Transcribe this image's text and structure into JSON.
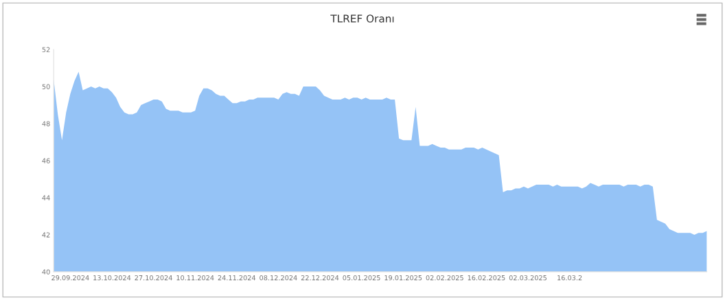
{
  "chart_data": {
    "type": "area",
    "title": "TLREF Oranı",
    "categories": [
      null,
      null,
      null,
      null,
      "29.09.2024",
      null,
      null,
      null,
      null,
      null,
      null,
      null,
      null,
      null,
      "13.10.2024",
      null,
      null,
      null,
      null,
      null,
      null,
      null,
      null,
      null,
      "27.10.2024",
      null,
      null,
      null,
      null,
      null,
      null,
      null,
      null,
      null,
      "10.11.2024",
      null,
      null,
      null,
      null,
      null,
      null,
      null,
      null,
      null,
      "24.11.2024",
      null,
      null,
      null,
      null,
      null,
      null,
      null,
      null,
      null,
      "08.12.2024",
      null,
      null,
      null,
      null,
      null,
      null,
      null,
      null,
      null,
      "22.12.2024",
      null,
      null,
      null,
      null,
      null,
      null,
      null,
      null,
      null,
      "05.01.2025",
      null,
      null,
      null,
      null,
      null,
      null,
      null,
      null,
      null,
      "19.01.2025",
      null,
      null,
      null,
      null,
      null,
      null,
      null,
      null,
      null,
      "02.02.2025",
      null,
      null,
      null,
      null,
      null,
      null,
      null,
      null,
      null,
      "16.02.2025",
      null,
      null,
      null,
      null,
      null,
      null,
      null,
      null,
      null,
      "02.03.2025",
      null,
      null,
      null,
      null,
      null,
      null,
      null,
      null,
      null,
      "16.03.2",
      null,
      null,
      null,
      null,
      null,
      null,
      null,
      null,
      null,
      null,
      null,
      null,
      null,
      null,
      null,
      null,
      null,
      null,
      null,
      null,
      null,
      null,
      null,
      null,
      null,
      null,
      null,
      null,
      null,
      null,
      null,
      null,
      null
    ],
    "series": [
      {
        "color": "#8fc0f5",
        "values": [
          50.4,
          48.5,
          47.1,
          48.6,
          49.6,
          50.3,
          50.8,
          49.8,
          49.9,
          50.0,
          49.9,
          50.0,
          49.9,
          49.9,
          49.7,
          49.4,
          48.9,
          48.6,
          48.5,
          48.5,
          48.6,
          49.0,
          49.1,
          49.2,
          49.3,
          49.3,
          49.2,
          48.8,
          48.7,
          48.7,
          48.7,
          48.6,
          48.6,
          48.6,
          48.7,
          49.5,
          49.9,
          49.9,
          49.8,
          49.6,
          49.5,
          49.5,
          49.3,
          49.1,
          49.1,
          49.2,
          49.2,
          49.3,
          49.3,
          49.4,
          49.4,
          49.4,
          49.4,
          49.4,
          49.3,
          49.6,
          49.7,
          49.6,
          49.6,
          49.5,
          50.0,
          50.0,
          50.0,
          50.0,
          49.8,
          49.5,
          49.4,
          49.3,
          49.3,
          49.3,
          49.4,
          49.3,
          49.4,
          49.4,
          49.3,
          49.4,
          49.3,
          49.3,
          49.3,
          49.3,
          49.4,
          49.3,
          49.3,
          47.2,
          47.1,
          47.1,
          47.1,
          48.9,
          46.8,
          46.8,
          46.8,
          46.9,
          46.8,
          46.7,
          46.7,
          46.6,
          46.6,
          46.6,
          46.6,
          46.7,
          46.7,
          46.7,
          46.6,
          46.7,
          46.6,
          46.5,
          46.4,
          46.3,
          44.3,
          44.4,
          44.4,
          44.5,
          44.5,
          44.6,
          44.5,
          44.6,
          44.7,
          44.7,
          44.7,
          44.7,
          44.6,
          44.7,
          44.6,
          44.6,
          44.6,
          44.6,
          44.6,
          44.5,
          44.6,
          44.8,
          44.7,
          44.6,
          44.7,
          44.7,
          44.7,
          44.7,
          44.7,
          44.6,
          44.7,
          44.7,
          44.7,
          44.6,
          44.7,
          44.7,
          44.6,
          42.8,
          42.7,
          42.6,
          42.3,
          42.2,
          42.1,
          42.1,
          42.1,
          42.1,
          42.0,
          42.1,
          42.1,
          42.2
        ]
      }
    ],
    "ylim": [
      40,
      52
    ],
    "yticks": [
      40,
      42,
      44,
      46,
      48,
      50,
      52
    ],
    "grid": false,
    "legend": false
  }
}
